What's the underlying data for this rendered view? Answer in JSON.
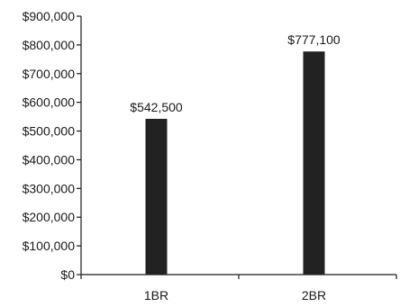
{
  "chart_data": {
    "type": "bar",
    "title": "",
    "xlabel": "",
    "ylabel": "",
    "categories": [
      "1BR",
      "2BR"
    ],
    "values": [
      542500,
      777100
    ],
    "data_labels": [
      "$542,500",
      "$777,100"
    ],
    "ylim": [
      0,
      900000
    ],
    "y_ticks": [
      0,
      100000,
      200000,
      300000,
      400000,
      500000,
      600000,
      700000,
      800000,
      900000
    ],
    "y_tick_labels": [
      "$0",
      "$100,000",
      "$200,000",
      "$300,000",
      "$400,000",
      "$500,000",
      "$600,000",
      "$700,000",
      "$800,000",
      "$900,000"
    ],
    "grid": false,
    "legend": "none",
    "bar_color": "#222222"
  }
}
